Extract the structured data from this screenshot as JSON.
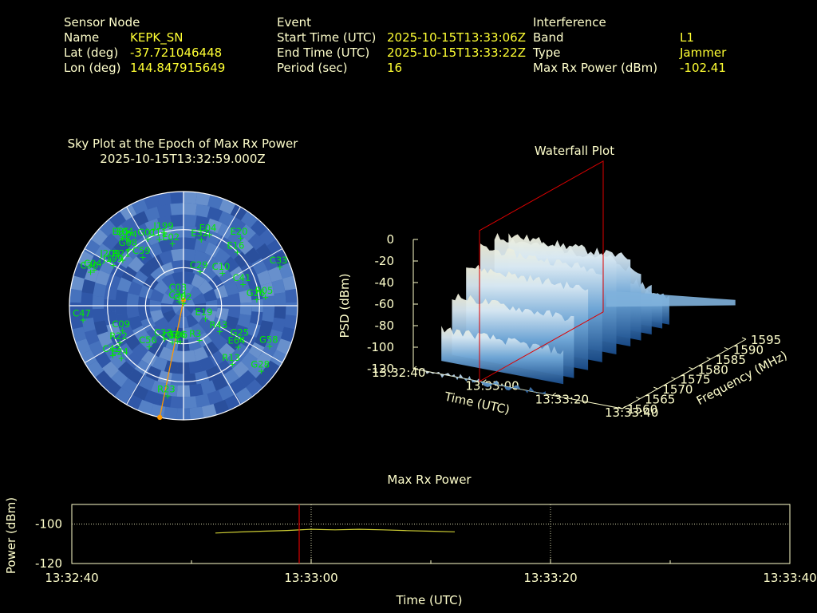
{
  "header": {
    "sensor": {
      "heading": "Sensor Node",
      "rows": [
        {
          "label": "Name",
          "value": "KEPK_SN"
        },
        {
          "label": "Lat (deg)",
          "value": "-37.721046448"
        },
        {
          "label": "Lon (deg)",
          "value": "144.847915649"
        }
      ]
    },
    "event": {
      "heading": "Event",
      "rows": [
        {
          "label": "Start Time (UTC)",
          "value": "2025-10-15T13:33:06Z"
        },
        {
          "label": "End Time (UTC)",
          "value": "2025-10-15T13:33:22Z"
        },
        {
          "label": "Period (sec)",
          "value": "16"
        }
      ]
    },
    "interference": {
      "heading": "Interference",
      "rows": [
        {
          "label": "Band",
          "value": "L1"
        },
        {
          "label": "Type",
          "value": "Jammer"
        },
        {
          "label": "Max Rx Power (dBm)",
          "value": "-102.41"
        }
      ]
    }
  },
  "colors": {
    "label": "#ffffcc",
    "value": "#ffff33",
    "satellite": "#00ee00",
    "direction": "#ff9900",
    "marker_line": "#dd0000",
    "power_line": "#cccc33"
  },
  "chart_data": [
    {
      "type": "scatter",
      "title": "Sky Plot at the Epoch of Max Rx Power",
      "subtitle": "2025-10-15T13:32:59.000Z",
      "rings": 3,
      "satellites": [
        {
          "id": "G02",
          "az": 0,
          "el": 88
        },
        {
          "id": "E05",
          "az": -42,
          "el": 18
        },
        {
          "id": "E04",
          "az": -40,
          "el": 20
        },
        {
          "id": "G01",
          "az": -28,
          "el": 30
        },
        {
          "id": "C11",
          "az": -20,
          "el": 34
        },
        {
          "id": "J199",
          "az": -15,
          "el": 30
        },
        {
          "id": "G04",
          "az": -40,
          "el": 23
        },
        {
          "id": "G08",
          "az": -44,
          "el": 28
        },
        {
          "id": "J199",
          "az": -60,
          "el": 26
        },
        {
          "id": "J209",
          "az": -58,
          "el": 22
        },
        {
          "id": "E02",
          "az": -10,
          "el": 40
        },
        {
          "id": "E32",
          "az": 15,
          "el": 36
        },
        {
          "id": "E04",
          "az": 20,
          "el": 30
        },
        {
          "id": "E20",
          "az": 40,
          "el": 20
        },
        {
          "id": "E16",
          "az": 45,
          "el": 30
        },
        {
          "id": "C33",
          "az": 68,
          "el": 8
        },
        {
          "id": "R21",
          "az": -53,
          "el": 30
        },
        {
          "id": "C59",
          "az": -40,
          "el": 40
        },
        {
          "id": "C30",
          "az": -70,
          "el": 12
        },
        {
          "id": "C04",
          "az": -68,
          "el": 14
        },
        {
          "id": "C29",
          "az": 26,
          "el": 60
        },
        {
          "id": "C10",
          "az": 50,
          "el": 50
        },
        {
          "id": "C41",
          "az": 70,
          "el": 40
        },
        {
          "id": "G26",
          "az": 85,
          "el": 32
        },
        {
          "id": "R05",
          "az": 84,
          "el": 25
        },
        {
          "id": "C03",
          "az": -20,
          "el": 80
        },
        {
          "id": "C34",
          "az": -45,
          "el": 85
        },
        {
          "id": "E19",
          "az": 120,
          "el": 70
        },
        {
          "id": "R43",
          "az": 125,
          "el": 55
        },
        {
          "id": "C47",
          "az": -98,
          "el": 10
        },
        {
          "id": "C09",
          "az": -112,
          "el": 38
        },
        {
          "id": "R22",
          "az": -120,
          "el": 32
        },
        {
          "id": "C56",
          "az": -140,
          "el": 48
        },
        {
          "id": "C33",
          "az": -150,
          "el": 60
        },
        {
          "id": "C30",
          "az": -163,
          "el": 60
        },
        {
          "id": "G26",
          "az": -170,
          "el": 62
        },
        {
          "id": "E06",
          "az": -175,
          "el": 62
        },
        {
          "id": "R3",
          "az": 155,
          "el": 60
        },
        {
          "id": "G25",
          "az": 120,
          "el": 38
        },
        {
          "id": "G58",
          "az": 115,
          "el": 15
        },
        {
          "id": "G28",
          "az": 130,
          "el": 10
        },
        {
          "id": "R13",
          "az": 140,
          "el": 30
        },
        {
          "id": "E64",
          "az": 127,
          "el": 36
        },
        {
          "id": "R23",
          "az": -170,
          "el": 18
        },
        {
          "id": "C42",
          "az": -125,
          "el": 22
        },
        {
          "id": "E24",
          "az": -130,
          "el": 26
        }
      ],
      "direction": {
        "az": -168,
        "el": 0
      }
    },
    {
      "type": "area",
      "title": "Waterfall Plot",
      "xlabel": "Time (UTC)",
      "ylabel": "Frequency (MHz)",
      "zlabel": "PSD (dBm)",
      "x_ticks": [
        "13:32:40",
        "13:33:00",
        "13:33:20",
        "13:33:40"
      ],
      "y_ticks": [
        "1560",
        "1565",
        "1570",
        "1575",
        "1580",
        "1585",
        "1590",
        "1595"
      ],
      "z_ticks": [
        "0",
        "-20",
        "-40",
        "-60",
        "-80",
        "-100",
        "-120"
      ],
      "zlim": [
        -120,
        0
      ],
      "freq_profile": [
        {
          "f": 1560,
          "psd": -120
        },
        {
          "f": 1565,
          "psd": -90
        },
        {
          "f": 1568,
          "psd": -65
        },
        {
          "f": 1572,
          "psd": -45
        },
        {
          "f": 1576,
          "psd": -35
        },
        {
          "f": 1580,
          "psd": -32
        },
        {
          "f": 1584,
          "psd": -38
        },
        {
          "f": 1587,
          "psd": -55
        },
        {
          "f": 1590,
          "psd": -75
        },
        {
          "f": 1593,
          "psd": -90
        },
        {
          "f": 1595,
          "psd": -95
        }
      ],
      "marker_time": "13:32:59"
    },
    {
      "type": "line",
      "title": "Max Rx Power",
      "xlabel": "Time (UTC)",
      "ylabel": "Power (dBm)",
      "x_ticks": [
        "13:32:40",
        "13:33:00",
        "13:33:20",
        "13:33:40"
      ],
      "y_ticks": [
        "-100",
        "-120"
      ],
      "ylim": [
        -120,
        -90
      ],
      "grid": true,
      "series": [
        {
          "x": [
            "13:32:52",
            "13:32:54",
            "13:32:56",
            "13:32:58",
            "13:33:00",
            "13:33:02",
            "13:33:04",
            "13:33:06",
            "13:33:08",
            "13:33:10",
            "13:33:12"
          ],
          "values": [
            -104.5,
            -104.0,
            -103.6,
            -103.2,
            -102.6,
            -102.9,
            -102.6,
            -102.9,
            -103.3,
            -103.6,
            -103.9
          ]
        }
      ],
      "marker_time": "13:32:59"
    }
  ]
}
